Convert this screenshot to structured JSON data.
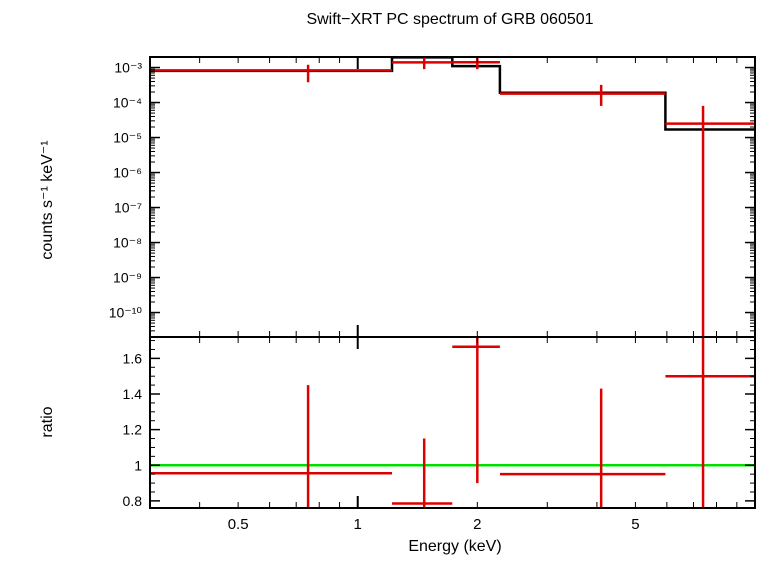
{
  "chart_data": [
    {
      "type": "step-spectrum",
      "title": "Swift−XRT PC spectrum of GRB 060501",
      "ylabel": "counts s⁻¹ keV⁻¹",
      "xscale": "log",
      "yscale": "log",
      "xlim": [
        0.3,
        10
      ],
      "ylim": [
        2e-11,
        0.002
      ],
      "ytick_labels": [
        "10⁻³",
        "10⁻⁴",
        "10⁻⁵",
        "10⁻⁶",
        "10⁻⁷",
        "10⁻⁸",
        "10⁻⁹",
        "10⁻¹⁰"
      ],
      "ytick_values": [
        0.001,
        0.0001,
        1e-05,
        1e-06,
        1e-07,
        1e-08,
        1e-09,
        1e-10
      ],
      "series": [
        {
          "color": "#dd0000",
          "points": [
            {
              "x": 0.75,
              "xlo": 0.3,
              "xhi": 1.22,
              "y": 0.00083,
              "ylo": 0.00038,
              "yhi": 0.0012
            },
            {
              "x": 1.47,
              "xlo": 1.22,
              "xhi": 1.73,
              "y": 0.0014,
              "ylo": 0.0009,
              "yhi": 0.00195
            },
            {
              "x": 2.0,
              "xlo": 1.73,
              "xhi": 2.28,
              "y": 0.00142,
              "ylo": 0.0009,
              "yhi": 0.002
            },
            {
              "x": 4.1,
              "xlo": 2.28,
              "xhi": 5.95,
              "y": 0.00018,
              "ylo": 8e-05,
              "yhi": 0.00032
            },
            {
              "x": 7.4,
              "xlo": 5.95,
              "xhi": 10,
              "y": 2.5e-05,
              "ylo": 2e-11,
              "yhi": 8e-05
            }
          ]
        },
        {
          "color": "#000000",
          "step": true,
          "edges": [
            0.3,
            1.22,
            1.73,
            2.28,
            5.95,
            10
          ],
          "values": [
            0.0008,
            0.00195,
            0.0011,
            0.00019,
            1.7e-05
          ]
        }
      ]
    },
    {
      "type": "ratio",
      "xlabel": "Energy (keV)",
      "ylabel": "ratio",
      "xscale": "log",
      "xlim": [
        0.3,
        10
      ],
      "ylim": [
        0.76,
        1.72
      ],
      "yticks": [
        "0.8",
        "1",
        "1.2",
        "1.4",
        "1.6"
      ],
      "ytick_values": [
        0.8,
        1.0,
        1.2,
        1.4,
        1.6
      ],
      "xticks": [
        "0.5",
        "1",
        "2",
        "5"
      ],
      "xtick_values": [
        0.5,
        1,
        2,
        5
      ],
      "reference_line": {
        "y": 1.0,
        "color": "#00e000"
      },
      "series": [
        {
          "color": "#dd0000",
          "points": [
            {
              "x": 0.75,
              "xlo": 0.3,
              "xhi": 1.22,
              "y": 0.955,
              "ylo": 0.76,
              "yhi": 1.45
            },
            {
              "x": 1.47,
              "xlo": 1.22,
              "xhi": 1.73,
              "y": 0.785,
              "ylo": 0.76,
              "yhi": 1.15
            },
            {
              "x": 2.0,
              "xlo": 1.73,
              "xhi": 2.28,
              "y": 1.665,
              "ylo": 0.9,
              "yhi": 1.72
            },
            {
              "x": 4.1,
              "xlo": 2.28,
              "xhi": 5.95,
              "y": 0.95,
              "ylo": 0.76,
              "yhi": 1.43
            },
            {
              "x": 7.4,
              "xlo": 5.95,
              "xhi": 10,
              "y": 1.5,
              "ylo": 0.76,
              "yhi": 1.72
            }
          ]
        }
      ]
    }
  ]
}
